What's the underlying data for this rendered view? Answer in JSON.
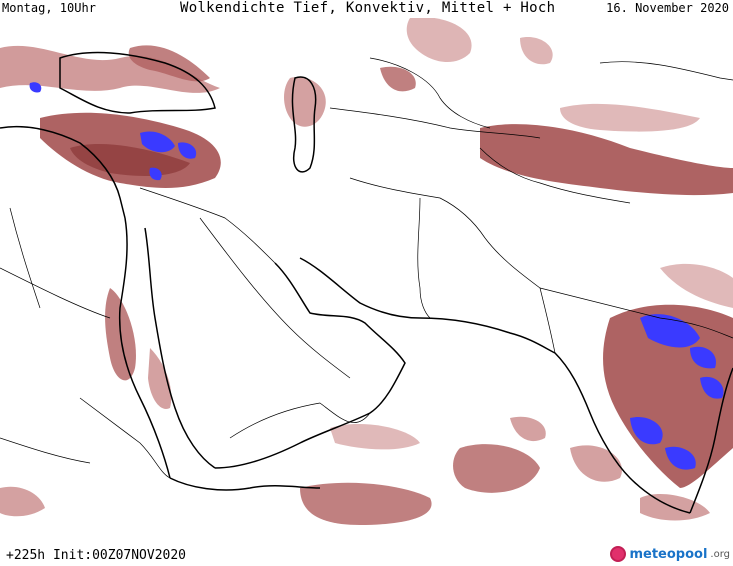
{
  "header": {
    "left": "Montag, 10Uhr",
    "center": "Wolkendichte  Tief, Konvektiv, Mittel + Hoch",
    "right": "16. November 2020"
  },
  "footer": {
    "left": "+225h Init:00Z07NOV2020",
    "logo_main": "meteopool",
    "logo_tld": ".org"
  },
  "colors": {
    "cloud_low": "#d8a8a8",
    "cloud_mid": "#b06060",
    "cloud_dense": "#8a3838",
    "convective": "#3a3aff",
    "border": "#000000",
    "background": "#ffffff"
  }
}
